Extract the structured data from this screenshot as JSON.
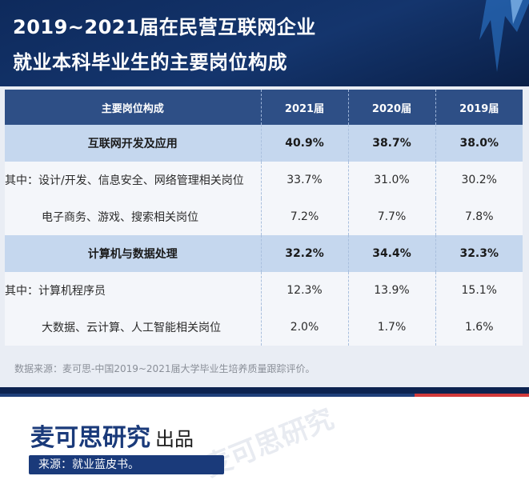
{
  "title": {
    "line1": "2019~2021届在民营互联网企业",
    "line2": "就业本科毕业生的主要岗位构成"
  },
  "table": {
    "headers": [
      "主要岗位构成",
      "2021届",
      "2020届",
      "2019届"
    ],
    "rows": [
      {
        "label": "互联网开发及应用",
        "v2021": "40.9%",
        "v2020": "38.7%",
        "v2019": "38.0%"
      },
      {
        "label": "其中：设计/开发、信息安全、网络管理相关岗位",
        "v2021": "33.7%",
        "v2020": "31.0%",
        "v2019": "30.2%"
      },
      {
        "label": "电子商务、游戏、搜索相关岗位",
        "v2021": "7.2%",
        "v2020": "7.7%",
        "v2019": "7.8%"
      },
      {
        "label": "计算机与数据处理",
        "v2021": "32.2%",
        "v2020": "34.4%",
        "v2019": "32.3%"
      },
      {
        "label": "其中：计算机程序员",
        "v2021": "12.3%",
        "v2020": "13.9%",
        "v2019": "15.1%"
      },
      {
        "label": "大数据、云计算、人工智能相关岗位",
        "v2021": "2.0%",
        "v2020": "1.7%",
        "v2019": "1.6%"
      }
    ]
  },
  "footnote": "数据来源：麦可思-中国2019~2021届大学毕业生培养质量跟踪评价。",
  "brand": {
    "name": "麦可思研究",
    "suffix": "出品",
    "source": "来源：就业蓝皮书。"
  },
  "watermark": "麦可思研究",
  "colors": {
    "header_bg": "#14356d",
    "table_header": "#2e4f86",
    "group_row": "#c5d7ee",
    "brand_blue": "#1a3a7a",
    "accent_red": "#d23a3a"
  }
}
